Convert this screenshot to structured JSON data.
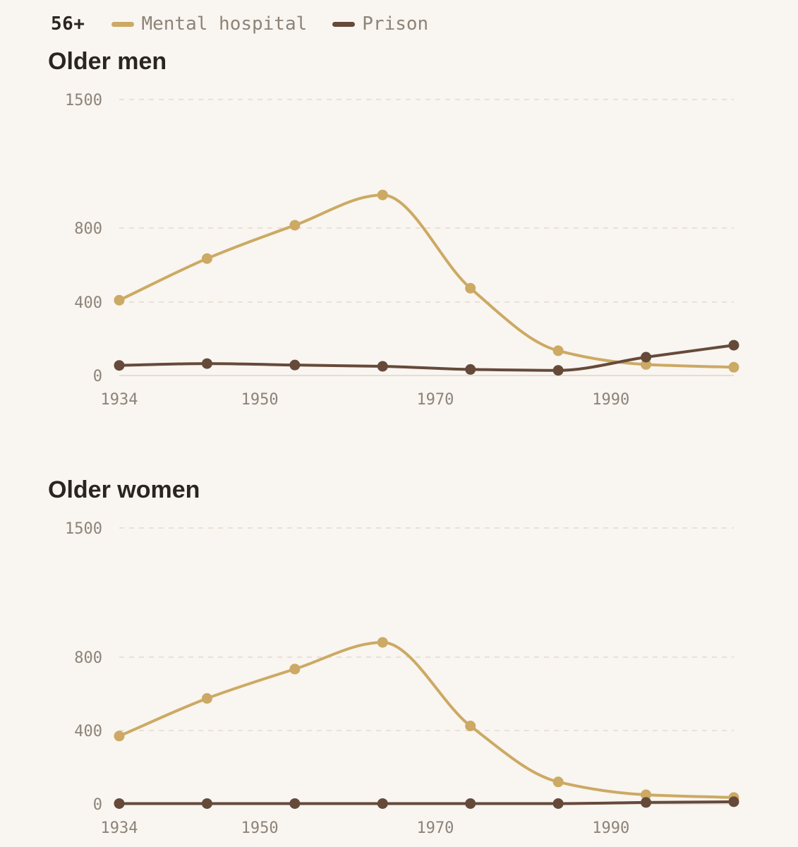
{
  "legend": {
    "age_group": "56+",
    "series": [
      {
        "name": "Mental hospital",
        "color": "#cca964"
      },
      {
        "name": "Prison",
        "color": "#654a3a"
      }
    ]
  },
  "chart_data": [
    {
      "type": "line",
      "title": "Older men",
      "xlabel": "",
      "ylabel": "",
      "x": [
        1934,
        1944,
        1954,
        1964,
        1974,
        1984,
        1994,
        2004
      ],
      "xlim": [
        1934,
        2004
      ],
      "xticks": [
        1934,
        1950,
        1970,
        1990
      ],
      "ylim": [
        0,
        1500
      ],
      "yticks": [
        0,
        400,
        800,
        1500
      ],
      "grid": true,
      "series": [
        {
          "name": "Mental hospital",
          "values": [
            410,
            635,
            815,
            980,
            475,
            135,
            60,
            45
          ]
        },
        {
          "name": "Prison",
          "values": [
            55,
            65,
            57,
            50,
            33,
            28,
            100,
            165
          ]
        }
      ]
    },
    {
      "type": "line",
      "title": "Older women",
      "xlabel": "",
      "ylabel": "",
      "x": [
        1934,
        1944,
        1954,
        1964,
        1974,
        1984,
        1994,
        2004
      ],
      "xlim": [
        1934,
        2004
      ],
      "xticks": [
        1934,
        1950,
        1970,
        1990
      ],
      "ylim": [
        0,
        1500
      ],
      "yticks": [
        0,
        400,
        800,
        1500
      ],
      "grid": true,
      "series": [
        {
          "name": "Mental hospital",
          "values": [
            370,
            575,
            735,
            880,
            425,
            120,
            50,
            35
          ]
        },
        {
          "name": "Prison",
          "values": [
            2,
            2,
            2,
            2,
            2,
            2,
            8,
            12
          ]
        }
      ]
    }
  ]
}
